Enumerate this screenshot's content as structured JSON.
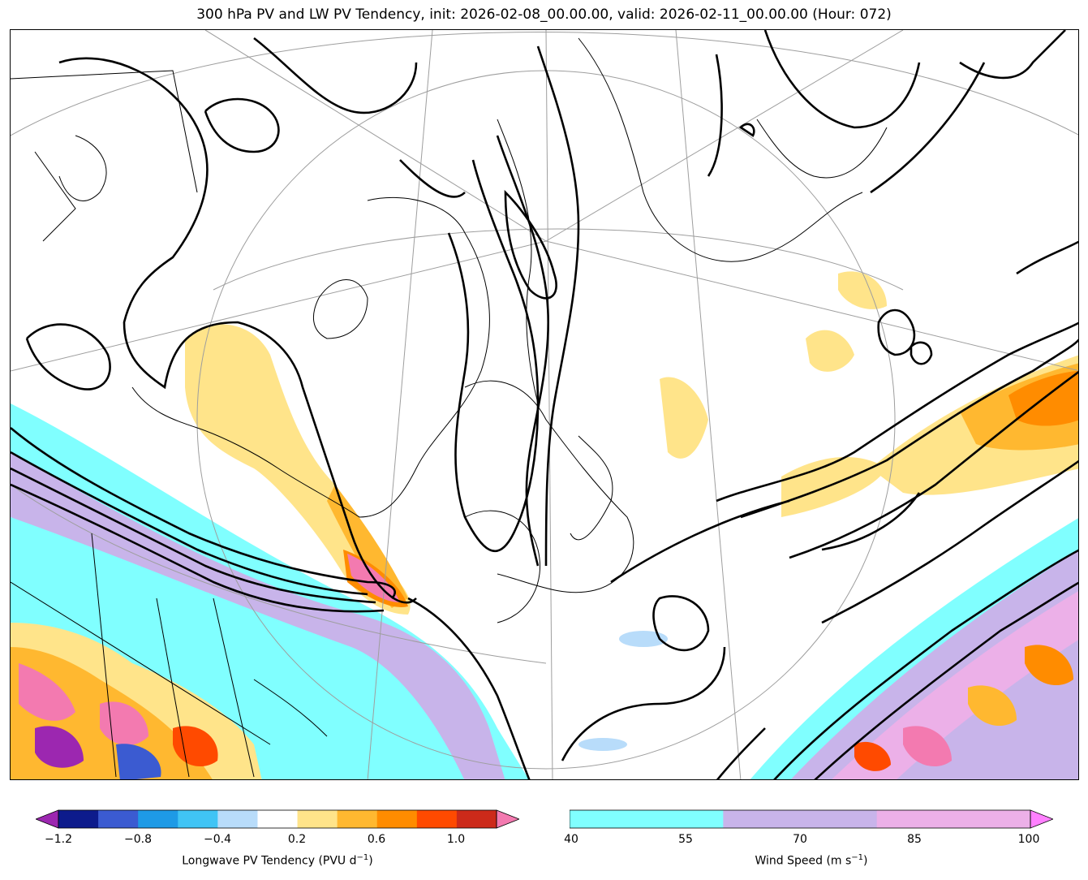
{
  "title": "300 hPa PV and LW PV Tendency, init: 2026-02-08_00.00.00, valid: 2026-02-11_00.00.00 (Hour: 072)",
  "colorbars": {
    "pv_tendency": {
      "label": "Longwave PV Tendency (PVU d",
      "label_exp": "−1",
      "label_end": ")",
      "ticks": [
        "−1.2",
        "−0.8",
        "−0.4",
        "0.2",
        "0.6",
        "1.0"
      ],
      "colors": [
        "#9c27b0",
        "#0d1b8c",
        "#3b5bd1",
        "#1e9ae6",
        "#40c4f5",
        "#b8dcfa",
        "#ffffff",
        "#ffe48a",
        "#ffb830",
        "#ff8c00",
        "#ff4a00",
        "#cc2a1a",
        "#f37ab0"
      ]
    },
    "wind_speed": {
      "label": "Wind Speed (m s",
      "label_exp": "−1",
      "label_end": ")",
      "ticks": [
        "40",
        "55",
        "70",
        "85",
        "100"
      ],
      "colors": [
        "#80ffff",
        "#c8b4ea",
        "#ecb0e8",
        "#ff80ff"
      ]
    }
  }
}
